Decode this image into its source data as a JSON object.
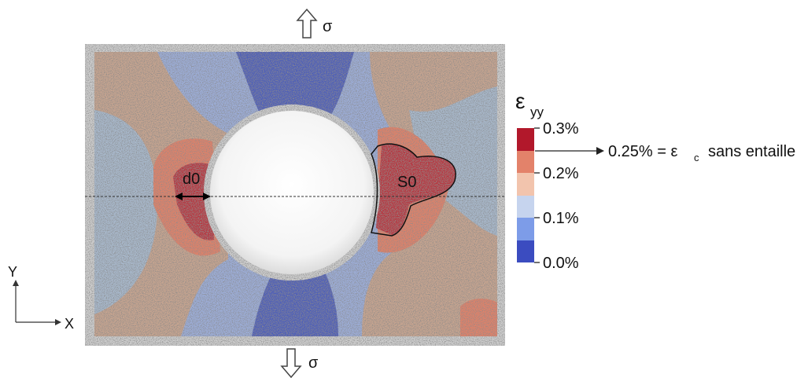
{
  "load": {
    "top": "σ",
    "bottom": "σ"
  },
  "labels": {
    "d0": "d0",
    "s0": "S0"
  },
  "axes": {
    "y": "Y",
    "x": "X"
  },
  "colorbar": {
    "symbol": "ε",
    "subscript": "yy",
    "ticks": [
      "0.3%",
      "0.2%",
      "0.1%",
      "0.0%"
    ]
  },
  "annotation": {
    "lhs": "0.25% = ε",
    "sub": "c",
    "rhs": "sans entaille"
  }
}
